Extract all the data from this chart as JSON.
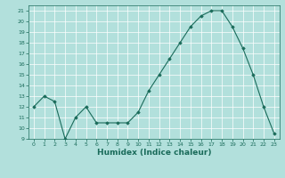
{
  "x": [
    0,
    1,
    2,
    3,
    4,
    5,
    6,
    7,
    8,
    9,
    10,
    11,
    12,
    13,
    14,
    15,
    16,
    17,
    18,
    19,
    20,
    21,
    22,
    23
  ],
  "y": [
    12,
    13,
    12.5,
    9,
    11,
    12,
    10.5,
    10.5,
    10.5,
    10.5,
    11.5,
    13.5,
    15,
    16.5,
    18,
    19.5,
    20.5,
    21,
    21,
    19.5,
    17.5,
    15,
    12,
    9.5
  ],
  "line_color": "#1a6b5a",
  "marker": "D",
  "marker_size": 1.8,
  "bg_color": "#b2e0dc",
  "grid_color": "#ffffff",
  "xlabel": "Humidex (Indice chaleur)",
  "xlim": [
    -0.5,
    23.5
  ],
  "ylim": [
    9,
    21.5
  ],
  "yticks": [
    9,
    10,
    11,
    12,
    13,
    14,
    15,
    16,
    17,
    18,
    19,
    20,
    21
  ],
  "xticks": [
    0,
    1,
    2,
    3,
    4,
    5,
    6,
    7,
    8,
    9,
    10,
    11,
    12,
    13,
    14,
    15,
    16,
    17,
    18,
    19,
    20,
    21,
    22,
    23
  ],
  "tick_color": "#1a6b5a",
  "tick_fontsize": 4.5,
  "xlabel_fontsize": 6.5,
  "linewidth": 0.8,
  "spine_color": "#1a6b5a",
  "grid_linewidth": 0.5
}
